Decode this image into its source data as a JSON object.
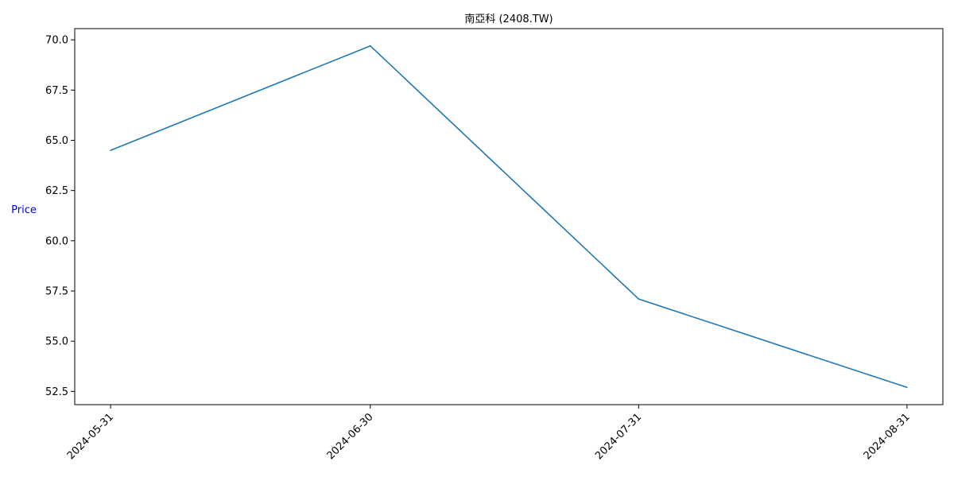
{
  "chart_data": {
    "type": "line",
    "title": "南亞科 (2408.TW)",
    "xlabel": "",
    "ylabel": "Price",
    "ylabel_color": "#0000ff",
    "line_color": "#1f77b4",
    "x": [
      "2024-05-31",
      "2024-06-30",
      "2024-07-31",
      "2024-08-31"
    ],
    "series": [
      {
        "values": [
          64.5,
          69.7,
          57.1,
          52.7
        ]
      }
    ],
    "yticks": [
      "52.5",
      "55.0",
      "57.5",
      "60.0",
      "62.5",
      "65.0",
      "67.5",
      "70.0"
    ],
    "ylim": [
      51.84,
      70.56
    ],
    "grid": false,
    "legend": "none"
  }
}
